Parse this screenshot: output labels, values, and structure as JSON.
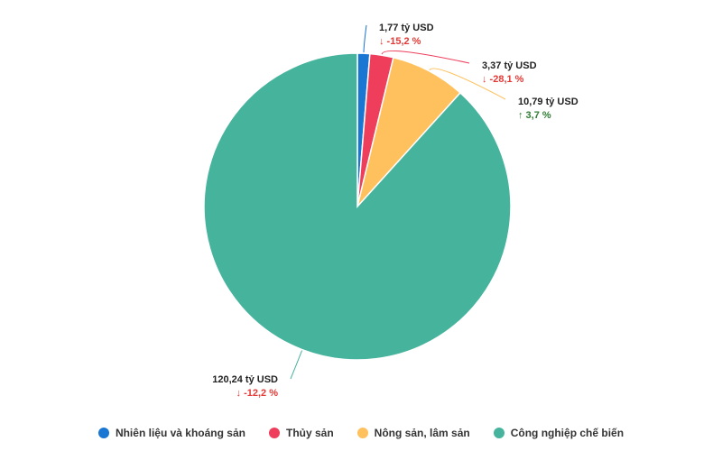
{
  "chart_data": {
    "type": "pie",
    "title": "",
    "unit": "tỷ USD",
    "legend_position": "bottom",
    "slices": [
      {
        "name": "Nhiên liệu và khoáng sản",
        "value": 1.77,
        "value_label": "1,77 tỷ USD",
        "change": -15.2,
        "change_label": "↓ -15,2 %",
        "color": "#1976D2"
      },
      {
        "name": "Thủy sản",
        "value": 3.37,
        "value_label": "3,37 tỷ USD",
        "change": -28.1,
        "change_label": "↓ -28,1 %",
        "color": "#EE3E5C"
      },
      {
        "name": "Nông sản, lâm sản",
        "value": 10.79,
        "value_label": "10,79 tỷ USD",
        "change": 3.7,
        "change_label": "↑ 3,7 %",
        "color": "#FFC15E"
      },
      {
        "name": "Công nghiệp chế biến",
        "value": 120.24,
        "value_label": "120,24 tỷ USD",
        "change": -12.2,
        "change_label": "↓ -12,2 %",
        "color": "#46B39D"
      }
    ],
    "change_colors": {
      "negative": "#E53935",
      "positive": "#2E7D32"
    }
  }
}
